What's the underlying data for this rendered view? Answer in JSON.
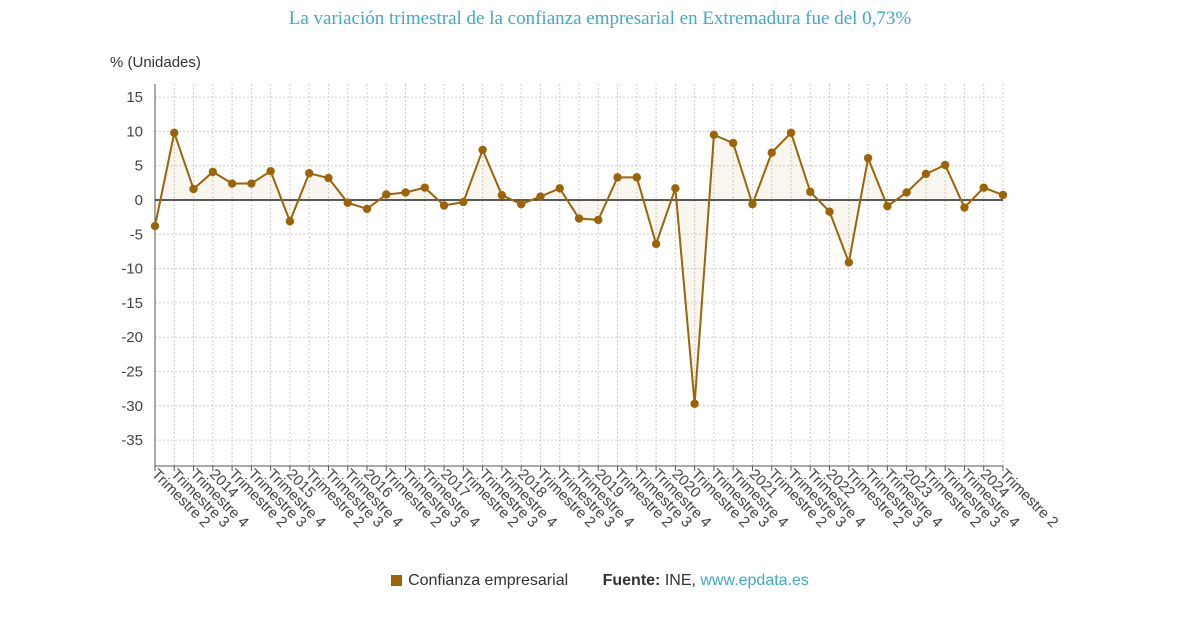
{
  "title": "La variación trimestral de la confianza empresarial en Extremadura fue del 0,73%",
  "legend": {
    "series_label": "Confianza empresarial",
    "source_label": "Fuente:",
    "source_name": "INE,",
    "source_link": "www.epdata.es"
  },
  "colors": {
    "series": "#9c6406",
    "zero_line": "#222222",
    "grid": "#cccccc",
    "title": "#3fa9c9"
  },
  "chart_data": {
    "type": "line",
    "title": "La variación trimestral de la confianza empresarial en Extremadura fue del 0,73%",
    "ylabel": "% (Unidades)",
    "xlabel": "",
    "ylim": [
      -39,
      16
    ],
    "yticks": [
      15,
      10,
      5,
      0,
      -5,
      -10,
      -15,
      -20,
      -25,
      -30,
      -35
    ],
    "grid": true,
    "legend_position": "bottom",
    "x": [
      "Trimestre 2",
      "Trimestre 3",
      "Trimestre 4",
      "2014",
      "Trimestre 2",
      "Trimestre 3",
      "Trimestre 4",
      "2015",
      "Trimestre 2",
      "Trimestre 3",
      "Trimestre 4",
      "2016",
      "Trimestre 2",
      "Trimestre 3",
      "Trimestre 4",
      "2017",
      "Trimestre 2",
      "Trimestre 3",
      "Trimestre 4",
      "2018",
      "Trimestre 2",
      "Trimestre 3",
      "Trimestre 4",
      "2019",
      "Trimestre 2",
      "Trimestre 3",
      "Trimestre 4",
      "2020",
      "Trimestre 2",
      "Trimestre 3",
      "Trimestre 4",
      "2021",
      "Trimestre 2",
      "Trimestre 3",
      "Trimestre 4",
      "2022",
      "Trimestre 2",
      "Trimestre 3",
      "Trimestre 4",
      "2023",
      "Trimestre 2",
      "Trimestre 3",
      "Trimestre 4",
      "2024",
      "Trimestre 2"
    ],
    "series": [
      {
        "name": "Confianza empresarial",
        "values": [
          -3.8,
          9.8,
          1.6,
          4.1,
          2.4,
          2.4,
          4.2,
          -3.1,
          3.9,
          3.2,
          -0.4,
          -1.3,
          0.8,
          1.1,
          1.8,
          -0.8,
          -0.3,
          7.3,
          0.7,
          -0.6,
          0.5,
          1.7,
          -2.7,
          -2.9,
          3.3,
          3.3,
          -6.4,
          1.7,
          -29.7,
          9.5,
          8.3,
          -0.6,
          6.9,
          9.8,
          1.2,
          -1.7,
          -9.1,
          6.1,
          -0.9,
          1.1,
          3.8,
          5.1,
          -1.1,
          1.8,
          0.73
        ]
      }
    ]
  }
}
